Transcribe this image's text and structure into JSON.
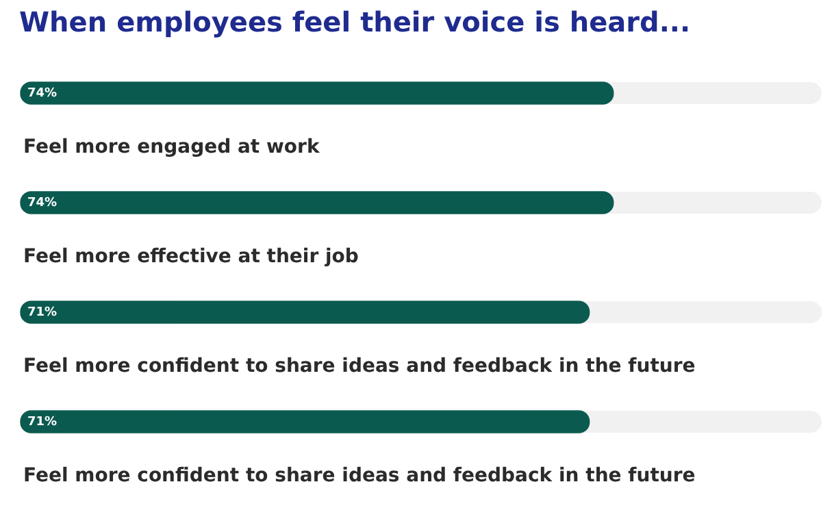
{
  "chart_data": {
    "type": "bar",
    "orientation": "horizontal",
    "title": "When employees feel their voice is heard...",
    "categories": [
      "Feel more engaged at work",
      "Feel more effective at their job",
      "Feel more confident to share ideas and feedback in the future",
      "Feel more confident to share ideas and feedback in the future"
    ],
    "values": [
      74,
      74,
      71,
      71
    ],
    "color": "#0b5a4f",
    "value_labels": [
      "74%",
      "74%",
      "71%",
      "71%"
    ],
    "xlim": [
      0,
      100
    ],
    "tick_labels": false,
    "legend": false
  }
}
